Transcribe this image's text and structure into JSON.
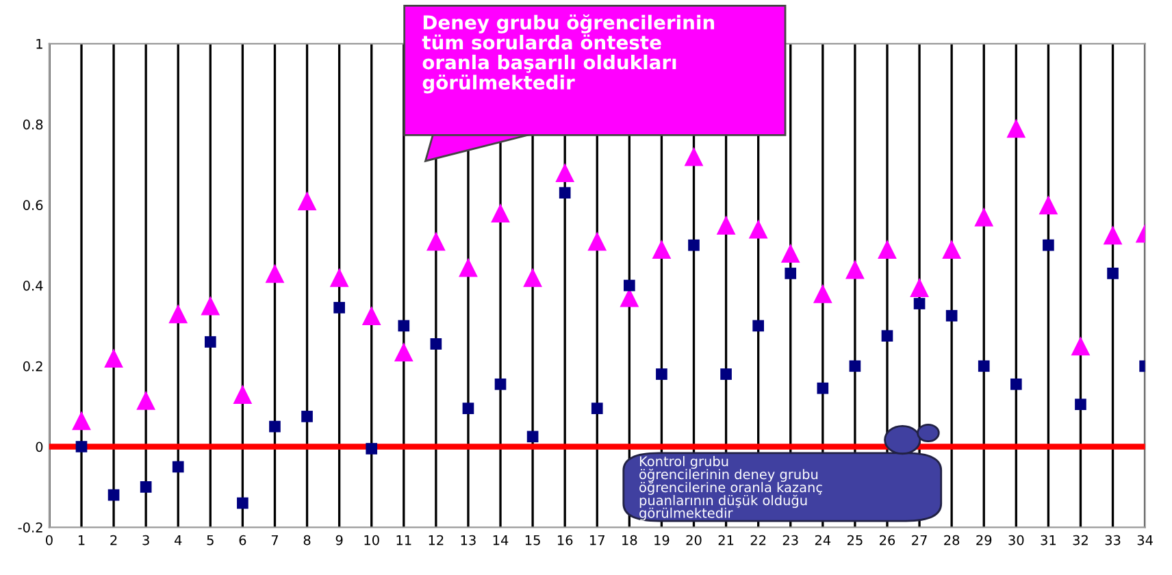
{
  "chart_data": {
    "type": "scatter",
    "x": [
      1,
      2,
      3,
      4,
      5,
      6,
      7,
      8,
      9,
      10,
      11,
      12,
      13,
      14,
      15,
      16,
      17,
      18,
      19,
      20,
      21,
      22,
      23,
      24,
      25,
      26,
      27,
      28,
      29,
      30,
      31,
      32,
      33,
      34
    ],
    "series": [
      {
        "color": "#ff00ff",
        "marker": "triangle",
        "values": [
          0.065,
          0.22,
          0.115,
          0.33,
          0.35,
          0.13,
          0.43,
          0.61,
          0.42,
          0.325,
          0.235,
          0.51,
          0.445,
          0.58,
          0.42,
          0.68,
          0.51,
          0.37,
          0.49,
          0.72,
          0.55,
          0.54,
          0.48,
          0.38,
          0.44,
          0.49,
          0.395,
          0.49,
          0.57,
          0.79,
          0.6,
          0.25,
          0.525,
          0.53
        ]
      },
      {
        "color": "#000080",
        "marker": "square",
        "values": [
          0.0,
          -0.12,
          -0.1,
          -0.05,
          0.26,
          -0.14,
          0.05,
          0.075,
          0.345,
          -0.005,
          0.3,
          0.255,
          0.095,
          0.155,
          0.025,
          0.63,
          0.095,
          0.4,
          0.18,
          0.5,
          0.18,
          0.3,
          0.43,
          0.145,
          0.2,
          0.275,
          0.355,
          0.325,
          0.2,
          0.155,
          0.5,
          0.105,
          0.43,
          0.2
        ]
      }
    ],
    "xlim": [
      0,
      34
    ],
    "xticks": [
      0,
      1,
      2,
      3,
      4,
      5,
      6,
      7,
      8,
      9,
      10,
      11,
      12,
      13,
      14,
      15,
      16,
      17,
      18,
      19,
      20,
      21,
      22,
      23,
      24,
      25,
      26,
      27,
      28,
      29,
      30,
      31,
      32,
      33,
      34
    ],
    "ylim": [
      -0.2,
      1
    ],
    "yticks": [
      -0.2,
      0,
      0.2,
      0.4,
      0.6,
      0.8,
      1
    ],
    "grid": "x",
    "legend": false,
    "ref_lines": [
      {
        "axis": "y",
        "value": 0,
        "color": "#ff0000"
      }
    ],
    "annotations": [
      "Deney grubu öğrencilerinin tüm sorularda önteste oranla başarılı oldukları görülmektedir",
      "Kontrol grubu öğrencilerinin deney grubu öğrencilerine oranla kazanç puanlarının düşük olduğu görülmektedir"
    ]
  }
}
